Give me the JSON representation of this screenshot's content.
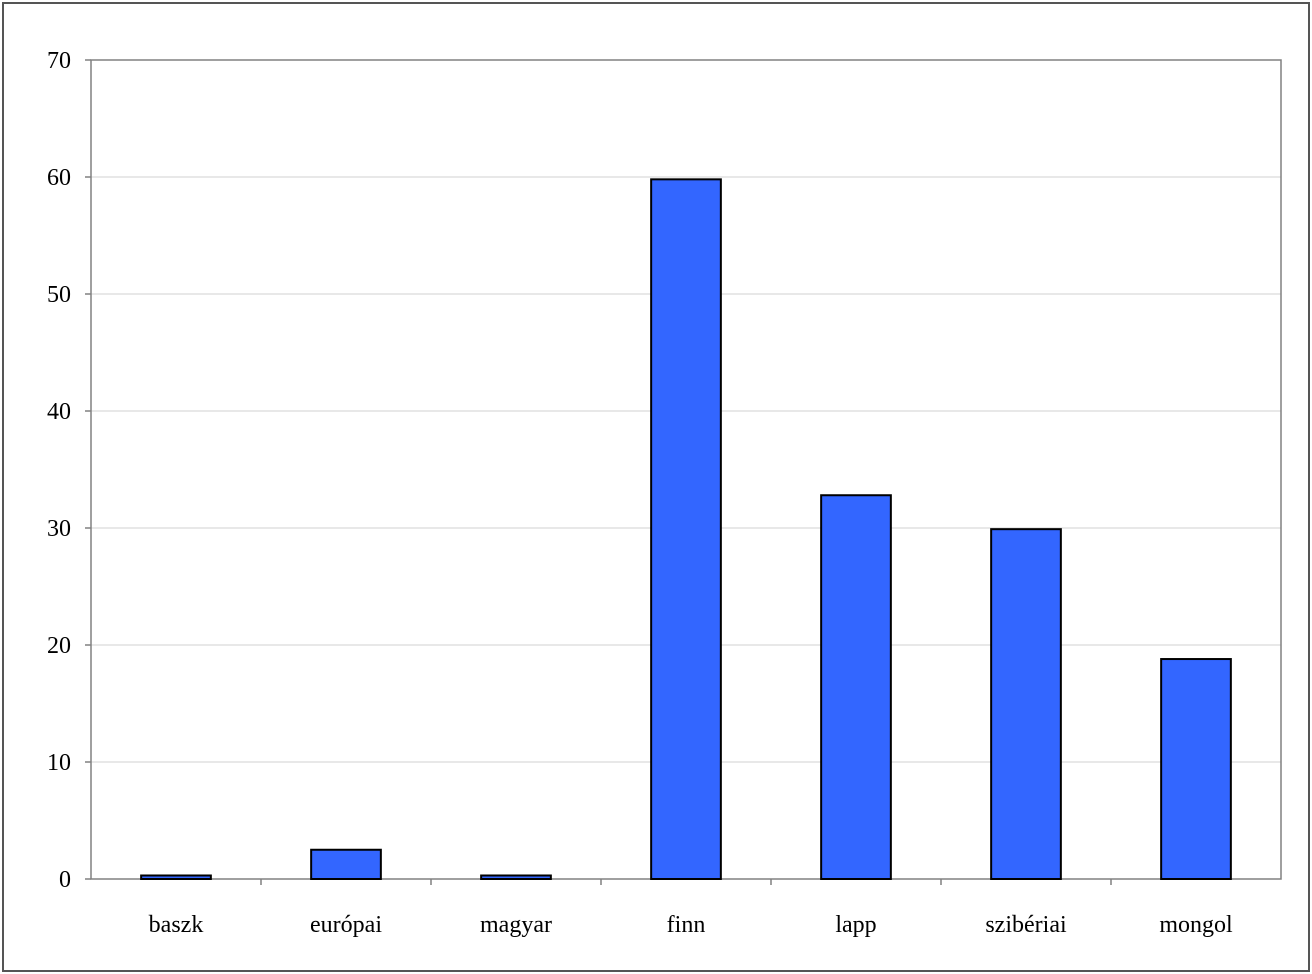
{
  "chart_data": {
    "type": "bar",
    "categories": [
      "baszk",
      "európai",
      "magyar",
      "finn",
      "lapp",
      "szibériai",
      "mongol"
    ],
    "values": [
      0.3,
      2.5,
      0.3,
      59.8,
      32.8,
      29.9,
      18.8
    ],
    "title": "",
    "xlabel": "",
    "ylabel": "",
    "ylim": [
      0,
      70
    ],
    "yticks": [
      "0",
      "10",
      "20",
      "30",
      "40",
      "50",
      "60",
      "70"
    ],
    "grid": true,
    "legend": "none",
    "colors": {
      "bar_fill": "#3366FF",
      "bar_stroke": "#000000",
      "grid": "#D9D9D9",
      "axis": "#808080"
    }
  }
}
